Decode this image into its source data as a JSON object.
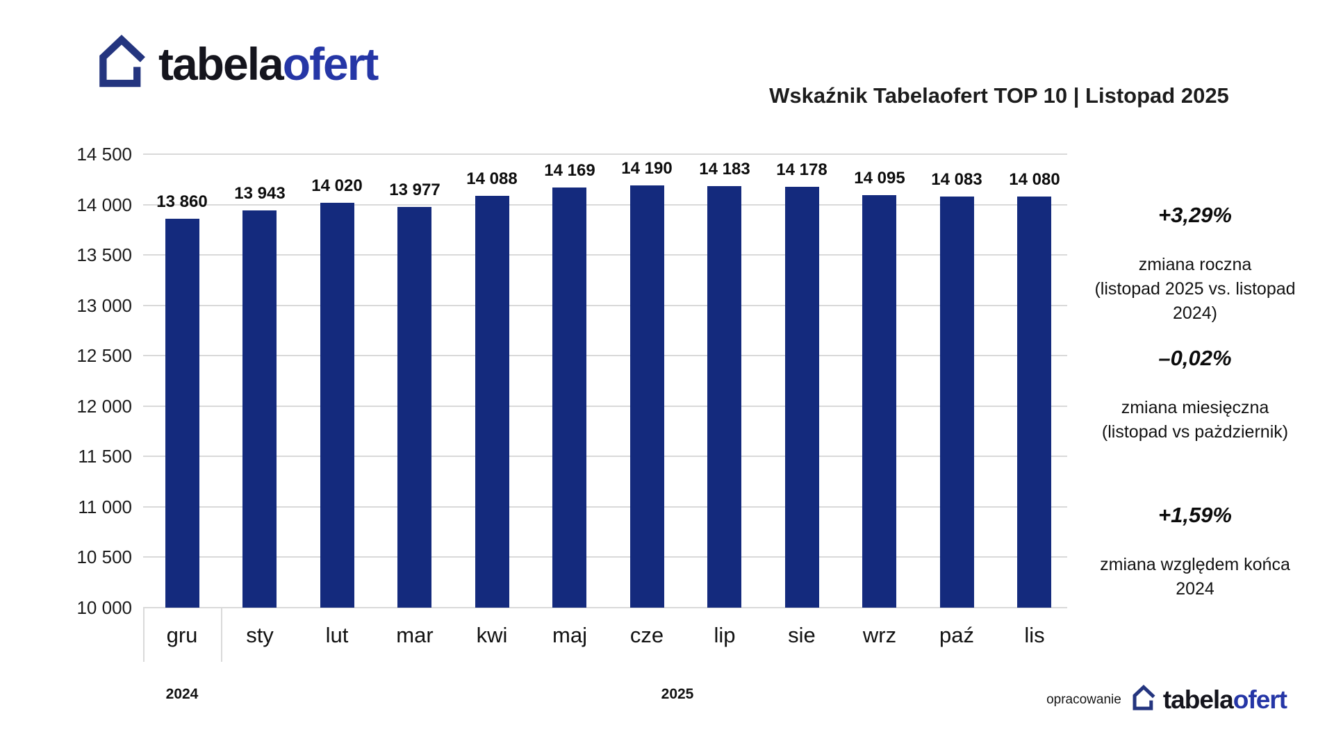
{
  "brand": {
    "word_black": "tabela",
    "word_blue": "ofert"
  },
  "header": {
    "title": "Wskaźnik Tabelaofert TOP 10  | Listopad 2025"
  },
  "chart_data": {
    "type": "bar",
    "title": "Wskaźnik Tabelaofert TOP 10 | Listopad 2025",
    "categories": [
      "gru",
      "sty",
      "lut",
      "mar",
      "kwi",
      "maj",
      "cze",
      "lip",
      "sie",
      "wrz",
      "paź",
      "lis"
    ],
    "values": [
      13860,
      13943,
      14020,
      13977,
      14088,
      14169,
      14190,
      14183,
      14178,
      14095,
      14083,
      14080
    ],
    "value_labels": [
      "13 860",
      "13 943",
      "14 020",
      "13 977",
      "14 088",
      "14 169",
      "14 190",
      "14 183",
      "14 178",
      "14 095",
      "14 083",
      "14 080"
    ],
    "y_ticks": [
      "14 500",
      "14 000",
      "13 500",
      "13 000",
      "12 500",
      "12 000",
      "11 500",
      "11 000",
      "10 500",
      "10 000"
    ],
    "ylim": [
      10000,
      14500
    ],
    "grid": true,
    "bar_color": "#142a7d",
    "gridline_color": "#d9d9d9",
    "years": [
      "2024",
      "2025"
    ]
  },
  "stats": [
    {
      "value": "+3,29%",
      "label": "zmiana roczna\n(listopad 2025 vs. listopad 2024)"
    },
    {
      "value": "–0,02%",
      "label": "zmiana miesięczna\n(listopad vs pażdziernik)"
    },
    {
      "value": "+1,59%",
      "label": "zmiana względem końca\n2024"
    }
  ],
  "footer": {
    "credit": "opracowanie"
  },
  "colors": {
    "bar": "#142a7d",
    "grid": "#d9d9d9",
    "logo_house": "#24357f",
    "logo_blue": "#2536a6",
    "text": "#131313"
  }
}
